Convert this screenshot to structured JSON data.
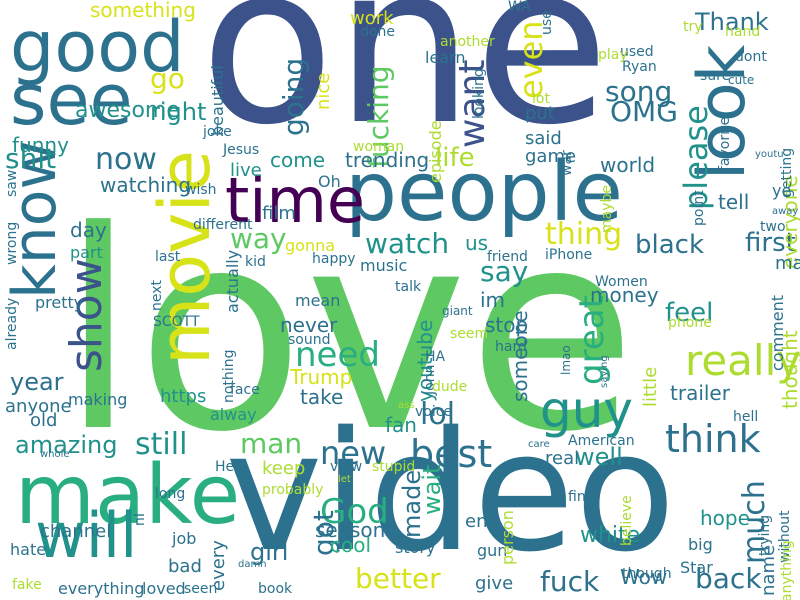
{
  "palette": {
    "c1": "#440154",
    "c2": "#3b528b",
    "c3": "#2c728e",
    "c4": "#21918c",
    "c5": "#28ae80",
    "c6": "#5ec962",
    "c7": "#addc30",
    "c8": "#d8e219"
  },
  "words": [
    {
      "text": "love",
      "color": "c6"
    },
    {
      "text": "one",
      "color": "c2"
    },
    {
      "text": "video",
      "color": "c3"
    },
    {
      "text": "people",
      "color": "c3"
    },
    {
      "text": "movie",
      "color": "c8"
    },
    {
      "text": "make",
      "color": "c5"
    },
    {
      "text": "good",
      "color": "c3"
    },
    {
      "text": "know",
      "color": "c3"
    },
    {
      "text": "see",
      "color": "c3"
    },
    {
      "text": "time",
      "color": "c1"
    },
    {
      "text": "look",
      "color": "c3"
    },
    {
      "text": "will",
      "color": "c4"
    },
    {
      "text": "guy",
      "color": "c4"
    },
    {
      "text": "show",
      "color": "c2"
    },
    {
      "text": "really",
      "color": "c7"
    },
    {
      "text": "think",
      "color": "c3"
    },
    {
      "text": "best",
      "color": "c3"
    },
    {
      "text": "need",
      "color": "c5"
    },
    {
      "text": "watch",
      "color": "c4"
    },
    {
      "text": "thing",
      "color": "c8"
    },
    {
      "text": "want",
      "color": "c2"
    },
    {
      "text": "fucking",
      "color": "c6"
    },
    {
      "text": "even",
      "color": "c8"
    },
    {
      "text": "please",
      "color": "c4"
    },
    {
      "text": "song",
      "color": "c3"
    },
    {
      "text": "OMG",
      "color": "c3"
    },
    {
      "text": "great",
      "color": "c5"
    },
    {
      "text": "much",
      "color": "c3"
    },
    {
      "text": "back",
      "color": "c3"
    },
    {
      "text": "fuck",
      "color": "c3"
    },
    {
      "text": "better",
      "color": "c8"
    },
    {
      "text": "God",
      "color": "c5"
    },
    {
      "text": "new",
      "color": "c3"
    },
    {
      "text": "lol",
      "color": "c3"
    },
    {
      "text": "man",
      "color": "c6"
    },
    {
      "text": "still",
      "color": "c4"
    },
    {
      "text": "year",
      "color": "c3"
    },
    {
      "text": "now",
      "color": "c3"
    },
    {
      "text": "shit",
      "color": "c4"
    },
    {
      "text": "way",
      "color": "c6"
    },
    {
      "text": "go",
      "color": "c8"
    },
    {
      "text": "right",
      "color": "c4"
    },
    {
      "text": "going",
      "color": "c3"
    },
    {
      "text": "say",
      "color": "c4"
    },
    {
      "text": "life",
      "color": "c7"
    },
    {
      "text": "feel",
      "color": "c4"
    },
    {
      "text": "first",
      "color": "c3"
    },
    {
      "text": "black",
      "color": "c3"
    },
    {
      "text": "amazing",
      "color": "c4"
    },
    {
      "text": "Thank",
      "color": "c3"
    },
    {
      "text": "got",
      "color": "c3"
    },
    {
      "text": "made",
      "color": "c3"
    },
    {
      "text": "wait",
      "color": "c5"
    },
    {
      "text": "well",
      "color": "c4"
    },
    {
      "text": "girl",
      "color": "c3"
    },
    {
      "text": "hope",
      "color": "c4"
    },
    {
      "text": "white",
      "color": "c4"
    },
    {
      "text": "awesome",
      "color": "c4"
    },
    {
      "text": "something",
      "color": "c8"
    },
    {
      "text": "funny",
      "color": "c4"
    },
    {
      "text": "youtube",
      "color": "c4"
    },
    {
      "text": "come",
      "color": "c4"
    },
    {
      "text": "day",
      "color": "c3"
    },
    {
      "text": "watching",
      "color": "c3"
    },
    {
      "text": "never",
      "color": "c3"
    },
    {
      "text": "Trump",
      "color": "c8"
    },
    {
      "text": "take",
      "color": "c3"
    },
    {
      "text": "us",
      "color": "c4"
    },
    {
      "text": "im",
      "color": "c3"
    },
    {
      "text": "stop",
      "color": "c3"
    },
    {
      "text": "someone",
      "color": "c3"
    },
    {
      "text": "money",
      "color": "c3"
    },
    {
      "text": "tell",
      "color": "c3"
    },
    {
      "text": "thought",
      "color": "c7"
    },
    {
      "text": "everyone",
      "color": "c7"
    },
    {
      "text": "trailer",
      "color": "c3"
    },
    {
      "text": "old",
      "color": "c3"
    },
    {
      "text": "anyone",
      "color": "c3"
    },
    {
      "text": "https",
      "color": "c4"
    },
    {
      "text": "fan",
      "color": "c4"
    },
    {
      "text": "real",
      "color": "c3"
    },
    {
      "text": "channel",
      "color": "c3"
    },
    {
      "text": "every",
      "color": "c3"
    },
    {
      "text": "season",
      "color": "c3"
    },
    {
      "text": "cool",
      "color": "c5"
    },
    {
      "text": "end",
      "color": "c3"
    },
    {
      "text": "give",
      "color": "c3"
    },
    {
      "text": "Wow",
      "color": "c3"
    },
    {
      "text": "name",
      "color": "c3"
    },
    {
      "text": "keep",
      "color": "c7"
    },
    {
      "text": "trending",
      "color": "c3"
    },
    {
      "text": "world",
      "color": "c3"
    },
    {
      "text": "many",
      "color": "c3"
    },
    {
      "text": "two",
      "color": "c3"
    },
    {
      "text": "episode",
      "color": "c7"
    },
    {
      "text": "learn",
      "color": "c3"
    },
    {
      "text": "put",
      "color": "c3"
    },
    {
      "text": "said",
      "color": "c3"
    },
    {
      "text": "game",
      "color": "c3"
    },
    {
      "text": "work",
      "color": "c8"
    },
    {
      "text": "nice",
      "color": "c8"
    },
    {
      "text": "beautiful",
      "color": "c3"
    },
    {
      "text": "live",
      "color": "c4"
    },
    {
      "text": "film",
      "color": "c3"
    },
    {
      "text": "Oh",
      "color": "c3"
    },
    {
      "text": "gonna",
      "color": "c8"
    },
    {
      "text": "music",
      "color": "c3"
    },
    {
      "text": "actually",
      "color": "c3"
    },
    {
      "text": "mean",
      "color": "c3"
    },
    {
      "text": "part",
      "color": "c4"
    },
    {
      "text": "pretty",
      "color": "c3"
    },
    {
      "text": "making",
      "color": "c3"
    },
    {
      "text": "alway",
      "color": "c4"
    },
    {
      "text": "little",
      "color": "c7"
    },
    {
      "text": "comment",
      "color": "c3"
    },
    {
      "text": "story",
      "color": "c3"
    },
    {
      "text": "bad",
      "color": "c3"
    },
    {
      "text": "job",
      "color": "c3"
    },
    {
      "text": "hate",
      "color": "c3"
    },
    {
      "text": "everything",
      "color": "c3"
    },
    {
      "text": "loved",
      "color": "c3"
    },
    {
      "text": "seen",
      "color": "c3"
    },
    {
      "text": "book",
      "color": "c3"
    },
    {
      "text": "gun",
      "color": "c3"
    },
    {
      "text": "person",
      "color": "c7"
    },
    {
      "text": "believe",
      "color": "c7"
    },
    {
      "text": "though",
      "color": "c3"
    },
    {
      "text": "Star",
      "color": "c3"
    },
    {
      "text": "big",
      "color": "c3"
    },
    {
      "text": "find",
      "color": "c3"
    },
    {
      "text": "trying",
      "color": "c3"
    },
    {
      "text": "without",
      "color": "c3"
    },
    {
      "text": "anything",
      "color": "c7"
    },
    {
      "text": "hell",
      "color": "c3"
    },
    {
      "text": "ye",
      "color": "c3"
    },
    {
      "text": "away",
      "color": "c3"
    },
    {
      "text": "getting",
      "color": "c3"
    },
    {
      "text": "youtu",
      "color": "c3"
    },
    {
      "text": "favorite",
      "color": "c3"
    },
    {
      "text": "cute",
      "color": "c3"
    },
    {
      "text": "sure",
      "color": "c3"
    },
    {
      "text": "dont",
      "color": "c3"
    },
    {
      "text": "hand",
      "color": "c7"
    },
    {
      "text": "try",
      "color": "c7"
    },
    {
      "text": "Ryan",
      "color": "c3"
    },
    {
      "text": "used",
      "color": "c3"
    },
    {
      "text": "play",
      "color": "c7"
    },
    {
      "text": "WA",
      "color": "c3"
    },
    {
      "text": "another",
      "color": "c7"
    },
    {
      "text": "done",
      "color": "c3"
    },
    {
      "text": "use",
      "color": "c3"
    },
    {
      "text": "looking",
      "color": "c3"
    },
    {
      "text": "lot",
      "color": "c7"
    },
    {
      "text": "war",
      "color": "c3"
    },
    {
      "text": "maybe",
      "color": "c7"
    },
    {
      "text": "point",
      "color": "c3"
    },
    {
      "text": "woman",
      "color": "c7"
    },
    {
      "text": "Jesus",
      "color": "c3"
    },
    {
      "text": "joke",
      "color": "c3"
    },
    {
      "text": "wish",
      "color": "c3"
    },
    {
      "text": "saw",
      "color": "c3"
    },
    {
      "text": "wrong",
      "color": "c3"
    },
    {
      "text": "already",
      "color": "c3"
    },
    {
      "text": "different",
      "color": "c3"
    },
    {
      "text": "last",
      "color": "c3"
    },
    {
      "text": "kid",
      "color": "c3"
    },
    {
      "text": "happy",
      "color": "c3"
    },
    {
      "text": "friend",
      "color": "c3"
    },
    {
      "text": "iPhone",
      "color": "c3"
    },
    {
      "text": "Women",
      "color": "c3"
    },
    {
      "text": "talk",
      "color": "c3"
    },
    {
      "text": "giant",
      "color": "c3"
    },
    {
      "text": "seem",
      "color": "c7"
    },
    {
      "text": "HA",
      "color": "c3"
    },
    {
      "text": "next",
      "color": "c3"
    },
    {
      "text": "SCOTT",
      "color": "c3"
    },
    {
      "text": "sound",
      "color": "c3"
    },
    {
      "text": "hard",
      "color": "c3"
    },
    {
      "text": "John",
      "color": "c3"
    },
    {
      "text": "dude",
      "color": "c7"
    },
    {
      "text": "voice",
      "color": "c3"
    },
    {
      "text": "nothing",
      "color": "c3"
    },
    {
      "text": "face",
      "color": "c3"
    },
    {
      "text": "ass",
      "color": "c7"
    },
    {
      "text": "lmao",
      "color": "c3"
    },
    {
      "text": "saying",
      "color": "c3"
    },
    {
      "text": "phone",
      "color": "c7"
    },
    {
      "text": "American",
      "color": "c3"
    },
    {
      "text": "care",
      "color": "c3"
    },
    {
      "text": "stupid",
      "color": "c7"
    },
    {
      "text": "view",
      "color": "c3"
    },
    {
      "text": "let",
      "color": "c7"
    },
    {
      "text": "Hey",
      "color": "c3"
    },
    {
      "text": "whole",
      "color": "c3"
    },
    {
      "text": "probably",
      "color": "c7"
    },
    {
      "text": "long",
      "color": "c3"
    },
    {
      "text": "nI",
      "color": "c3"
    },
    {
      "text": "damn",
      "color": "c3"
    },
    {
      "text": "fake",
      "color": "c7"
    },
    {
      "text": "help",
      "color": "c3"
    }
  ]
}
